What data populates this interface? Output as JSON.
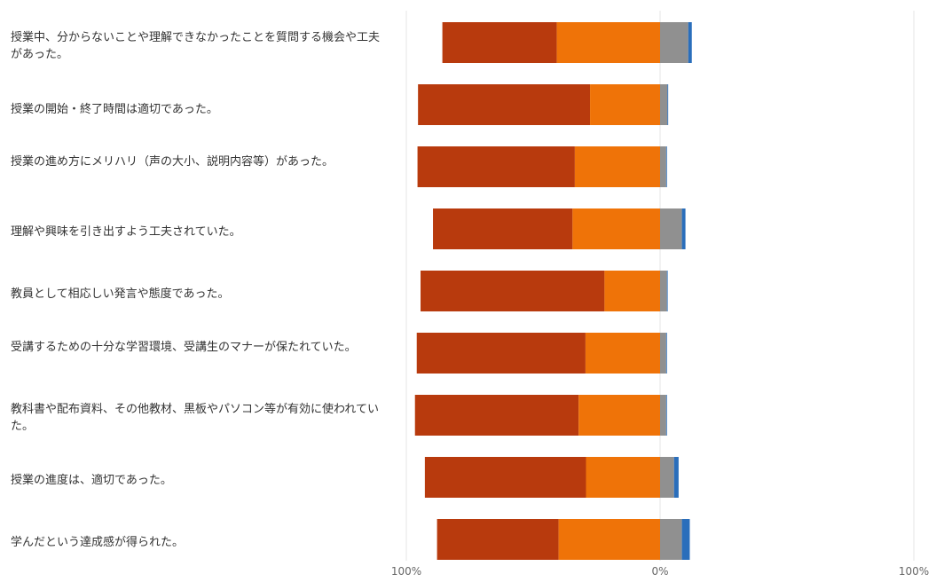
{
  "chart_data": {
    "type": "bar",
    "orientation": "horizontal",
    "stacked": "diverging",
    "xlim": [
      -100,
      100
    ],
    "x_tick_labels": [
      "100%",
      "0%",
      "100%"
    ],
    "grid": true,
    "legend": "none",
    "categories": [
      "授業中、分からないことや理解できなかったことを質問する機会や工夫があった。",
      "授業の開始・終了時間は適切であった。",
      "授業の進め方にメリハリ（声の大小、説明内容等）があった。",
      "理解や興味を引き出すよう工夫されていた。",
      "教員として相応しい発言や態度であった。",
      "受講するための十分な学習環境、受講生のマナーが保たれていた。",
      "教科書や配布資料、その他教材、黒板やパソコン等が有効に使われていた。",
      "授業の進度は、適切であった。",
      "学んだという達成感が得られた。"
    ],
    "series": [
      {
        "values": [
          45.1,
          67.8,
          62.0,
          55.0,
          72.5,
          66.5,
          64.5,
          63.5,
          47.9
        ]
      },
      {
        "values": [
          40.7,
          27.6,
          33.6,
          34.5,
          21.9,
          29.4,
          32.1,
          29.2,
          40.0
        ]
      },
      {
        "values": [
          11.1,
          2.9,
          2.4,
          8.6,
          2.7,
          2.4,
          2.4,
          5.5,
          8.6
        ]
      },
      {
        "values": [
          1.4,
          0.3,
          0.3,
          1.4,
          0.3,
          0.3,
          0.3,
          1.8,
          3.1
        ]
      }
    ],
    "colors": [
      "#b83a0d",
      "#ef7308",
      "#909090",
      "#2a6ebb"
    ]
  }
}
